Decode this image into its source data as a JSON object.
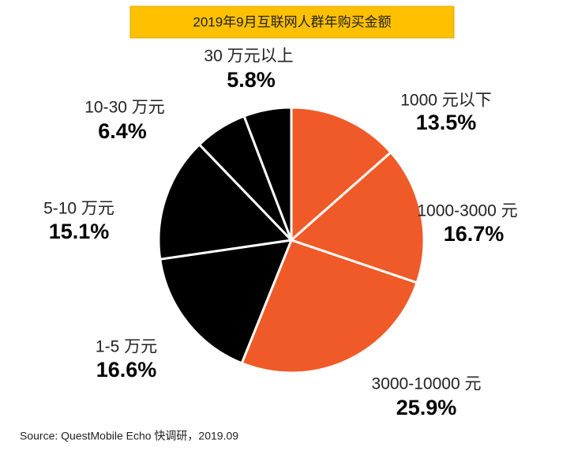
{
  "chart_data": {
    "type": "pie",
    "title": "2019年9月互联网人群年购买金额",
    "categories": [
      "1000 元以下",
      "1000-3000 元",
      "3000-10000 元",
      "1-5 万元",
      "5-10 万元",
      "10-30 万元",
      "30 万元以上"
    ],
    "values": [
      13.5,
      16.7,
      25.9,
      16.6,
      15.1,
      6.4,
      5.8
    ],
    "value_labels": [
      "13.5%",
      "16.7%",
      "25.9%",
      "16.6%",
      "15.1%",
      "6.4%",
      "5.8%"
    ],
    "colors": [
      "#f05a28",
      "#f05a28",
      "#f05a28",
      "#000000",
      "#000000",
      "#000000",
      "#000000"
    ],
    "source": "Source: QuestMobile  Echo 快调研，2019.09"
  }
}
